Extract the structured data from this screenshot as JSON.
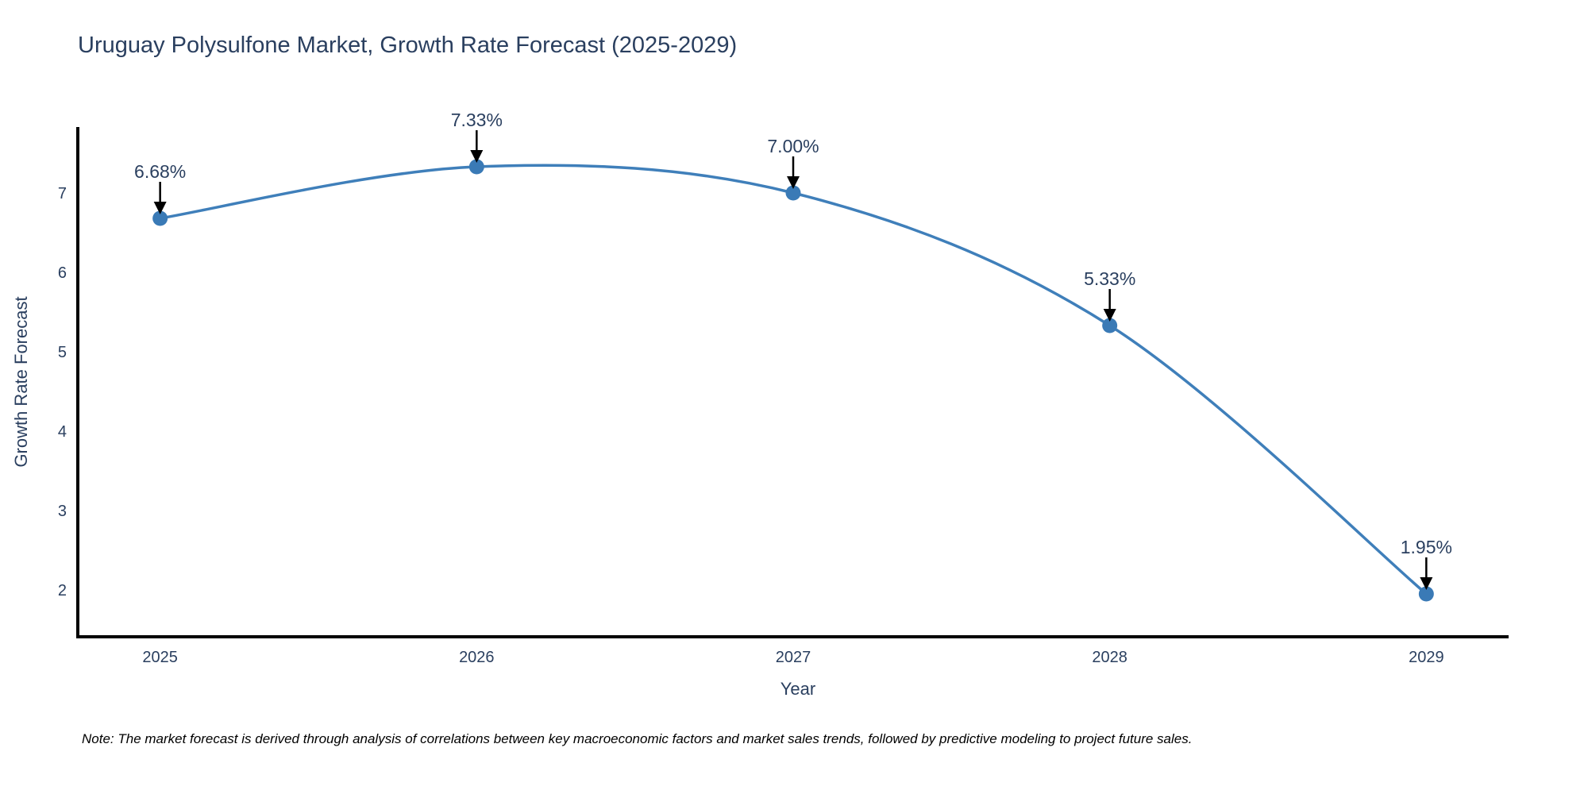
{
  "figure": {
    "title": "Uruguay Polysulfone Market, Growth Rate Forecast (2025-2029)",
    "note": "Note: The market forecast is derived through analysis of correlations between key macroeconomic factors and market sales trends, followed by predictive modeling to project future sales."
  },
  "chart_data": {
    "type": "line",
    "title": "Uruguay Polysulfone Market, Growth Rate Forecast (2025-2029)",
    "xlabel": "Year",
    "ylabel": "Growth Rate Forecast",
    "x": [
      2025,
      2026,
      2027,
      2028,
      2029
    ],
    "series": [
      {
        "name": "Growth Rate Forecast",
        "values": [
          6.68,
          7.33,
          7.0,
          5.33,
          1.95
        ],
        "point_labels": [
          "6.68%",
          "7.33%",
          "7.00%",
          "5.33%",
          "1.95%"
        ]
      }
    ],
    "line_shape": "spline",
    "markers": true,
    "grid": false,
    "legend_position": "none",
    "xticks": {
      "values": [
        2025,
        2026,
        2027,
        2028,
        2029
      ],
      "labels": [
        "2025",
        "2026",
        "2027",
        "2028",
        "2029"
      ]
    },
    "yticks": {
      "values": [
        2,
        3,
        4,
        5,
        6,
        7
      ],
      "labels": [
        "2",
        "3",
        "4",
        "5",
        "6",
        "7"
      ]
    },
    "xlim": [
      2024.74,
      2029.26
    ],
    "ylim": [
      1.41,
      7.83
    ],
    "annotations_arrow_color": "#000000",
    "colors": {
      "line": "#3f7fba",
      "marker": "#3a7ab6",
      "text": "#2a3f5f",
      "axis_line": "#000000",
      "note_text": "#000000",
      "background": "#ffffff"
    }
  }
}
